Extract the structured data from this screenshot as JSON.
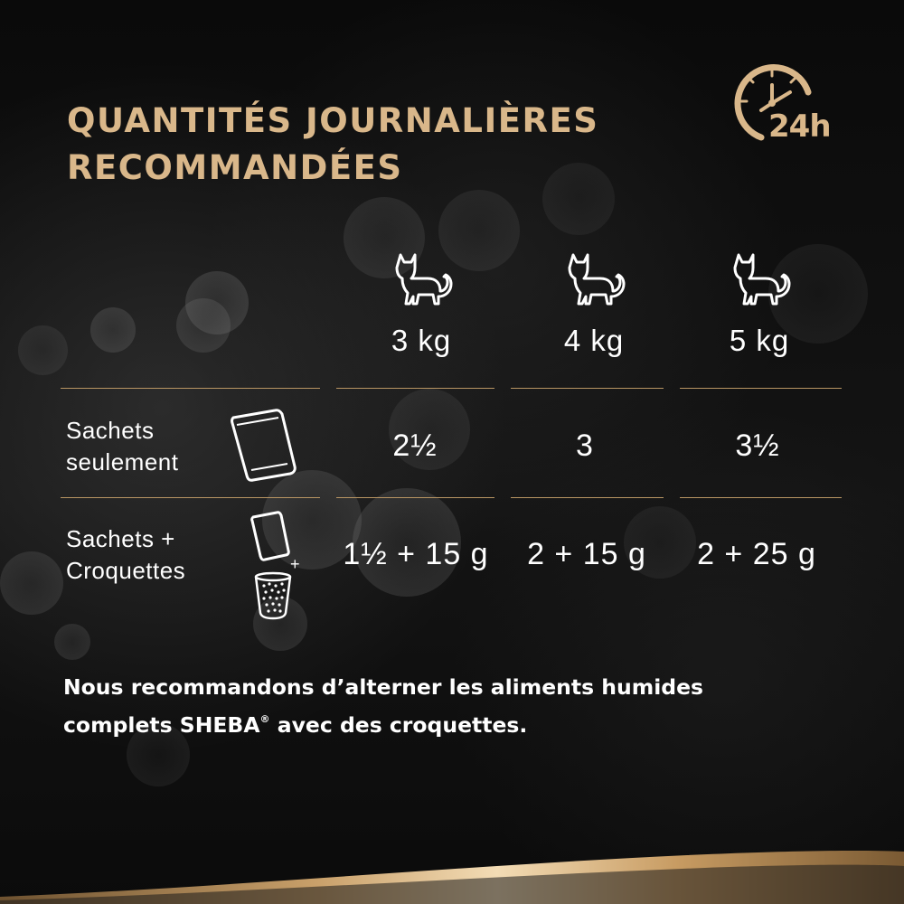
{
  "title": {
    "line1": "QUANTITÉS JOURNALIÈRES",
    "line2": "RECOMMANDÉES"
  },
  "clock_badge": {
    "icon": "clock-24h-icon",
    "text": "24h"
  },
  "columns": [
    {
      "icon": "cat-icon",
      "weight": "3 kg"
    },
    {
      "icon": "cat-icon",
      "weight": "4 kg"
    },
    {
      "icon": "cat-icon",
      "weight": "5 kg"
    }
  ],
  "rows": [
    {
      "label_line1": "Sachets",
      "label_line2": "seulement",
      "icon": "pouch-icon",
      "values": [
        "2½",
        "3",
        "3½"
      ]
    },
    {
      "label_line1": "Sachets +",
      "label_line2": "Croquettes",
      "icon": "pouch-plus-bowl-icon",
      "plus": "+",
      "values": [
        "1½ + 15 g",
        "2 + 15 g",
        "2 + 25 g"
      ]
    }
  ],
  "note": {
    "line1": "Nous recommandons d’alterner les aliments humides",
    "line2_before": "complets SHEBA",
    "registered": "®",
    "line2_after": " avec des croquettes."
  },
  "colors": {
    "gold": "#d9b78a",
    "rule": "#b89563",
    "background": "#0b0b0b",
    "text": "#ffffff"
  }
}
